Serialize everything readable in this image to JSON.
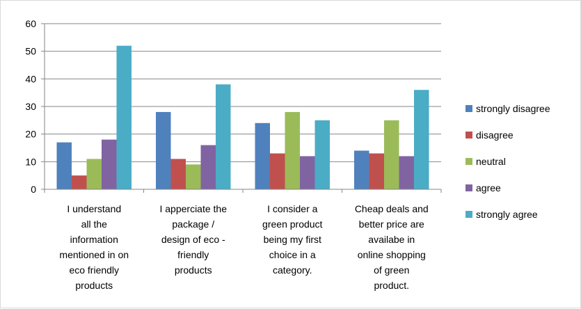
{
  "chart_data": {
    "type": "bar",
    "title": "",
    "xlabel": "",
    "ylabel": "",
    "ylim": [
      0,
      60
    ],
    "yticks": [
      0,
      10,
      20,
      30,
      40,
      50,
      60
    ],
    "grid": "horizontal",
    "legend_position": "right",
    "categories": [
      [
        "I understand",
        "all the",
        "information",
        "mentioned in on",
        "eco friendly",
        "products"
      ],
      [
        "I apperciate the",
        "package /",
        "design of eco -",
        "friendly",
        "products"
      ],
      [
        "I consider a",
        "green product",
        "being my first",
        "choice in a",
        "category."
      ],
      [
        "Cheap deals and",
        "better price are",
        "availabe in",
        "online shopping",
        "of green",
        "product."
      ]
    ],
    "series": [
      {
        "name": "strongly disagree",
        "color": "#4f81bd",
        "values": [
          17,
          28,
          24,
          14
        ]
      },
      {
        "name": "disagree",
        "color": "#c0504d",
        "values": [
          5,
          11,
          13,
          13
        ]
      },
      {
        "name": "neutral",
        "color": "#9bbb59",
        "values": [
          11,
          9,
          28,
          25
        ]
      },
      {
        "name": "agree",
        "color": "#8064a2",
        "values": [
          18,
          16,
          12,
          12
        ]
      },
      {
        "name": "strongly agree",
        "color": "#4bacc6",
        "values": [
          52,
          38,
          25,
          36
        ]
      }
    ]
  }
}
